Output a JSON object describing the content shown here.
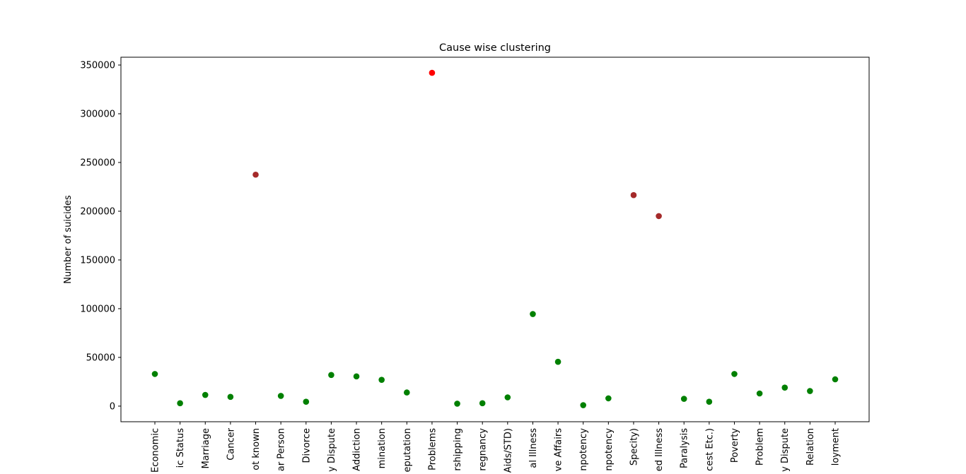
{
  "chart_data": {
    "type": "scatter",
    "title": "Cause wise clustering",
    "xlabel": "",
    "ylabel": "Number of suicides",
    "ylim": [
      -16000,
      358000
    ],
    "yticks": [
      0,
      50000,
      100000,
      150000,
      200000,
      250000,
      300000,
      350000
    ],
    "ytick_labels": [
      "0",
      "50000",
      "100000",
      "150000",
      "200000",
      "250000",
      "300000",
      "350000"
    ],
    "grid": false,
    "colors": {
      "cluster_low": "#008000",
      "cluster_mid": "#a52a2a",
      "cluster_high": "#ff0000"
    },
    "categories": [
      "Economic",
      "ic Status",
      "Marriage",
      "Cancer",
      "ot known",
      "ar Person",
      "Divorce",
      "y Dispute",
      "Addiction",
      "mination",
      "eputation",
      "Problems",
      "rshipping",
      "regnancy",
      "Aids/STD)",
      "al Illness",
      "ve Affairs",
      "npotency",
      "npotency",
      "Specity)",
      "ed Illness",
      "Paralysis",
      "cest Etc.)",
      "Poverty",
      "Problem",
      "y Dispute",
      "Relation",
      "loyment"
    ],
    "values": [
      33000,
      3000,
      11500,
      9500,
      237500,
      10500,
      4500,
      32000,
      30500,
      27000,
      14000,
      342000,
      2500,
      3000,
      9000,
      94500,
      45500,
      1000,
      8000,
      216500,
      195000,
      7500,
      4500,
      33000,
      13000,
      19000,
      15500,
      27500
    ],
    "cluster": [
      "low",
      "low",
      "low",
      "low",
      "mid",
      "low",
      "low",
      "low",
      "low",
      "low",
      "low",
      "high",
      "low",
      "low",
      "low",
      "low",
      "low",
      "low",
      "low",
      "mid",
      "mid",
      "low",
      "low",
      "low",
      "low",
      "low",
      "low",
      "low"
    ]
  }
}
